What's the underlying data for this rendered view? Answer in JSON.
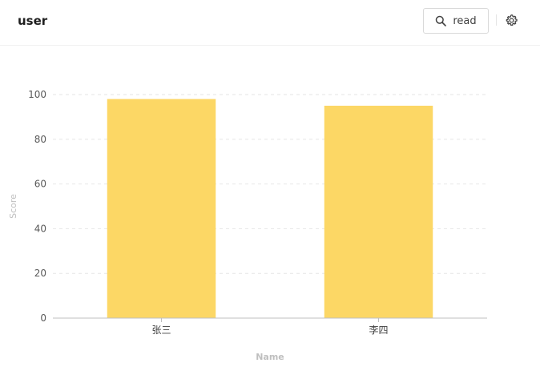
{
  "header": {
    "title": "user",
    "read_button_label": "read",
    "search_icon": "search-icon",
    "settings_icon": "gear-icon"
  },
  "chart_data": {
    "type": "bar",
    "categories": [
      "张三",
      "李四"
    ],
    "values": [
      98,
      95
    ],
    "xlabel": "Name",
    "ylabel": "Score",
    "ylim": [
      0,
      100
    ],
    "yticks": [
      0,
      20,
      40,
      60,
      80,
      100
    ],
    "grid": true,
    "bar_color": "#fcd765"
  }
}
